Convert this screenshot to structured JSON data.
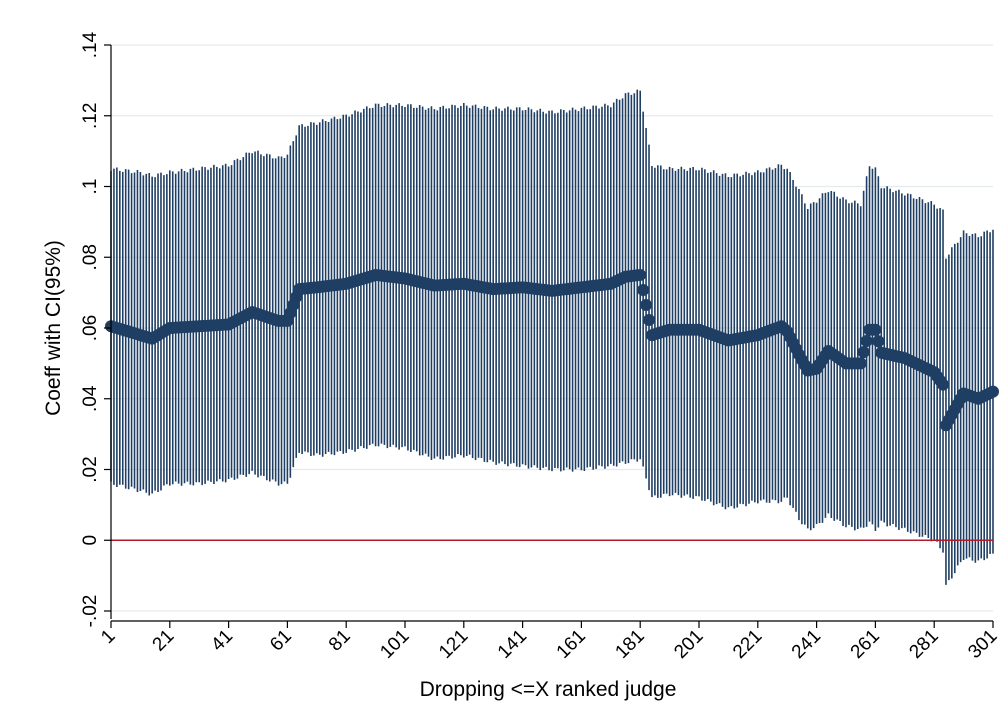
{
  "chart_data": {
    "type": "scatter",
    "title": "",
    "xlabel": "Dropping <=X ranked judge",
    "ylabel": "Coeff with CI(95%)",
    "xlim": [
      1,
      301
    ],
    "ylim": [
      -0.02,
      0.14
    ],
    "x_ticks": [
      1,
      21,
      41,
      61,
      81,
      101,
      121,
      141,
      161,
      181,
      201,
      221,
      241,
      261,
      281,
      301
    ],
    "x_tick_labels": [
      "1",
      "21",
      "41",
      "61",
      "81",
      "101",
      "121",
      "141",
      "161",
      "181",
      "201",
      "221",
      "241",
      "261",
      "281",
      "301"
    ],
    "y_ticks": [
      -0.02,
      0,
      0.02,
      0.04,
      0.06,
      0.08,
      0.1,
      0.12,
      0.14
    ],
    "y_tick_labels": [
      "-.02",
      "0",
      ".02",
      ".04",
      ".06",
      ".08",
      ".1",
      ".12",
      ".14"
    ],
    "grid": true,
    "reference_line_y": 0,
    "series": [
      {
        "type": "point_with_ci",
        "color": "#1f3e63",
        "x": [
          1,
          11,
          15,
          21,
          31,
          41,
          49,
          58,
          61,
          65,
          71,
          81,
          91,
          101,
          111,
          121,
          131,
          141,
          151,
          161,
          171,
          176,
          181,
          185,
          191,
          201,
          211,
          221,
          229,
          231,
          235,
          238,
          241,
          245,
          251,
          256,
          259,
          261,
          263,
          271,
          281,
          284,
          285,
          291,
          296,
          301
        ],
        "y": [
          0.0605,
          0.058,
          0.057,
          0.06,
          0.0605,
          0.061,
          0.0645,
          0.062,
          0.062,
          0.071,
          0.0715,
          0.0725,
          0.075,
          0.074,
          0.072,
          0.0725,
          0.071,
          0.0715,
          0.0705,
          0.0715,
          0.0725,
          0.0745,
          0.075,
          0.058,
          0.0595,
          0.0595,
          0.0565,
          0.058,
          0.0605,
          0.059,
          0.0525,
          0.048,
          0.0485,
          0.0535,
          0.05,
          0.05,
          0.0595,
          0.0595,
          0.053,
          0.0515,
          0.0475,
          0.044,
          0.0325,
          0.0415,
          0.04,
          0.042
        ],
        "ci_low": [
          0.016,
          0.014,
          0.013,
          0.016,
          0.016,
          0.017,
          0.019,
          0.016,
          0.016,
          0.025,
          0.024,
          0.025,
          0.027,
          0.026,
          0.023,
          0.024,
          0.022,
          0.021,
          0.02,
          0.02,
          0.021,
          0.022,
          0.023,
          0.012,
          0.013,
          0.012,
          0.009,
          0.011,
          0.011,
          0.012,
          0.006,
          0.003,
          0.004,
          0.007,
          0.004,
          0.003,
          0.005,
          0.003,
          0.005,
          0.003,
          0.0,
          -0.003,
          -0.013,
          -0.005,
          -0.006,
          -0.004
        ],
        "ci_high": [
          0.105,
          0.104,
          0.103,
          0.104,
          0.105,
          0.106,
          0.11,
          0.108,
          0.109,
          0.117,
          0.118,
          0.12,
          0.123,
          0.123,
          0.122,
          0.123,
          0.122,
          0.122,
          0.121,
          0.122,
          0.123,
          0.126,
          0.127,
          0.106,
          0.105,
          0.105,
          0.103,
          0.104,
          0.106,
          0.105,
          0.099,
          0.094,
          0.096,
          0.099,
          0.096,
          0.095,
          0.106,
          0.105,
          0.1,
          0.098,
          0.095,
          0.093,
          0.08,
          0.087,
          0.086,
          0.088
        ]
      }
    ]
  }
}
